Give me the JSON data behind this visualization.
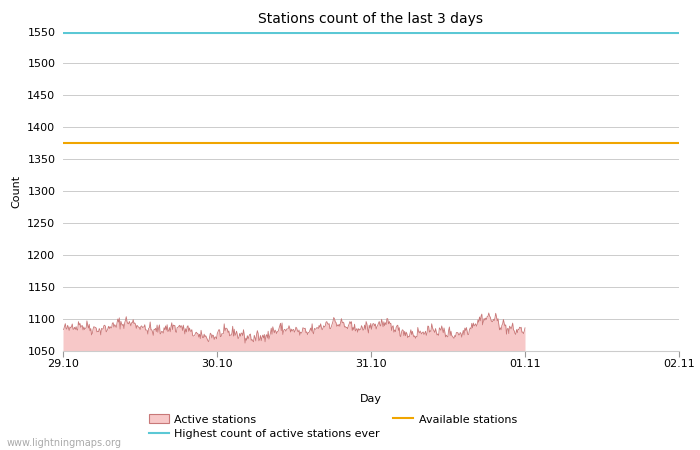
{
  "title": "Stations count of the last 3 days",
  "xlabel": "Day",
  "ylabel": "Count",
  "ylim": [
    1050,
    1550
  ],
  "yticks": [
    1050,
    1100,
    1150,
    1200,
    1250,
    1300,
    1350,
    1400,
    1450,
    1500,
    1550
  ],
  "x_start": 0,
  "x_end": 4,
  "x_tick_positions": [
    0,
    1,
    2,
    3,
    4
  ],
  "x_tick_labels": [
    "29.10",
    "30.10",
    "31.10",
    "01.11",
    "02.11"
  ],
  "highest_ever_value": 1548,
  "highest_ever_color": "#5bc8d5",
  "available_stations_value": 1375,
  "available_stations_color": "#f0a500",
  "active_stations_fill_color": "#f7c8c8",
  "active_stations_line_color": "#c87878",
  "background_color": "#ffffff",
  "grid_color": "#cccccc",
  "title_fontsize": 10,
  "axis_fontsize": 8,
  "tick_fontsize": 8,
  "watermark": "www.lightningmaps.org",
  "watermark_color": "#aaaaaa",
  "legend_labels": [
    "Active stations",
    "Highest count of active stations ever",
    "Available stations"
  ]
}
